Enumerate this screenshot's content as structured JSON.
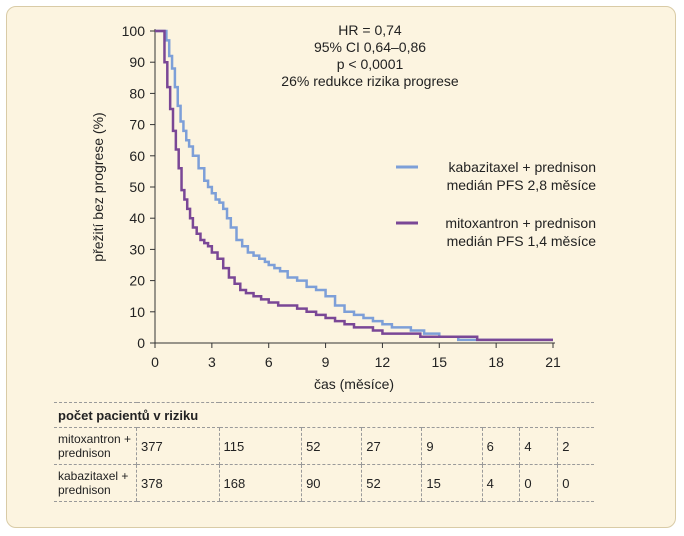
{
  "chart_data": {
    "type": "line",
    "step": true,
    "ylabel": "přežití bez progrese (%)",
    "xlabel": "čas (měsíce)",
    "xlim": [
      0,
      21
    ],
    "ylim": [
      0,
      100
    ],
    "xticks": [
      "0",
      "3",
      "6",
      "9",
      "12",
      "15",
      "18",
      "21"
    ],
    "yticks": [
      "0",
      "10",
      "20",
      "30",
      "40",
      "50",
      "60",
      "70",
      "80",
      "90",
      "100"
    ],
    "grid": false,
    "legend_position": "right",
    "annotations": [
      "HR = 0,74",
      "95% CI 0,64–0,86",
      "p < 0,0001",
      "26% redukce rizika progrese"
    ],
    "series": [
      {
        "name": "kabazitaxel + prednison",
        "name_line2": "medián PFS 2,8 měsíce",
        "color": "#7d9fd8",
        "x": [
          0,
          0.6,
          0.75,
          0.9,
          1.05,
          1.2,
          1.35,
          1.5,
          1.65,
          1.8,
          2.0,
          2.3,
          2.6,
          2.8,
          3.0,
          3.2,
          3.4,
          3.6,
          3.8,
          4.0,
          4.3,
          4.6,
          4.9,
          5.2,
          5.5,
          5.8,
          6.0,
          6.3,
          6.6,
          7.0,
          7.5,
          8.0,
          8.5,
          9.0,
          9.5,
          10.0,
          10.5,
          11.0,
          11.5,
          12.0,
          12.5,
          13.5,
          14.2,
          15.0,
          16.0,
          17.0,
          21.0
        ],
        "y": [
          100,
          97,
          92,
          88,
          82,
          76,
          71,
          68,
          65,
          63,
          60,
          56,
          52,
          50,
          48,
          46,
          45,
          43,
          40,
          37,
          33,
          31,
          29,
          28,
          27,
          26,
          25,
          24,
          23,
          21,
          20,
          18,
          17,
          15,
          12,
          10,
          9,
          8,
          7,
          6,
          5,
          4,
          3,
          2,
          1,
          1,
          1
        ]
      },
      {
        "name": "mitoxantron + prednison",
        "name_line2": "medián PFS 1,4 měsíce",
        "color": "#7a4796",
        "x": [
          0,
          0.5,
          0.65,
          0.8,
          0.95,
          1.1,
          1.25,
          1.4,
          1.55,
          1.7,
          1.85,
          2.0,
          2.2,
          2.4,
          2.6,
          2.8,
          3.0,
          3.3,
          3.6,
          3.9,
          4.2,
          4.5,
          4.8,
          5.2,
          5.6,
          6.0,
          6.5,
          7.0,
          7.5,
          8.0,
          8.5,
          9.0,
          9.5,
          10.0,
          10.5,
          11.0,
          11.5,
          12.0,
          14.0,
          16.0,
          17.0,
          21.0
        ],
        "y": [
          100,
          90,
          82,
          75,
          68,
          62,
          56,
          49,
          46,
          43,
          40,
          37,
          35,
          33,
          32,
          31,
          29,
          27,
          24,
          21,
          19,
          17,
          16,
          15,
          14,
          13,
          12,
          12,
          11,
          10,
          9,
          8,
          7,
          6,
          5,
          5,
          4,
          3,
          2,
          2,
          1,
          1
        ]
      }
    ]
  },
  "risk_table": {
    "header": "počet pacientů v riziku",
    "rows": [
      {
        "label": "mitoxantron + prednison",
        "values": [
          "377",
          "115",
          "52",
          "27",
          "9",
          "6",
          "4",
          "2"
        ]
      },
      {
        "label": "kabazitaxel + prednison",
        "values": [
          "378",
          "168",
          "90",
          "52",
          "15",
          "4",
          "0",
          "0"
        ]
      }
    ]
  }
}
